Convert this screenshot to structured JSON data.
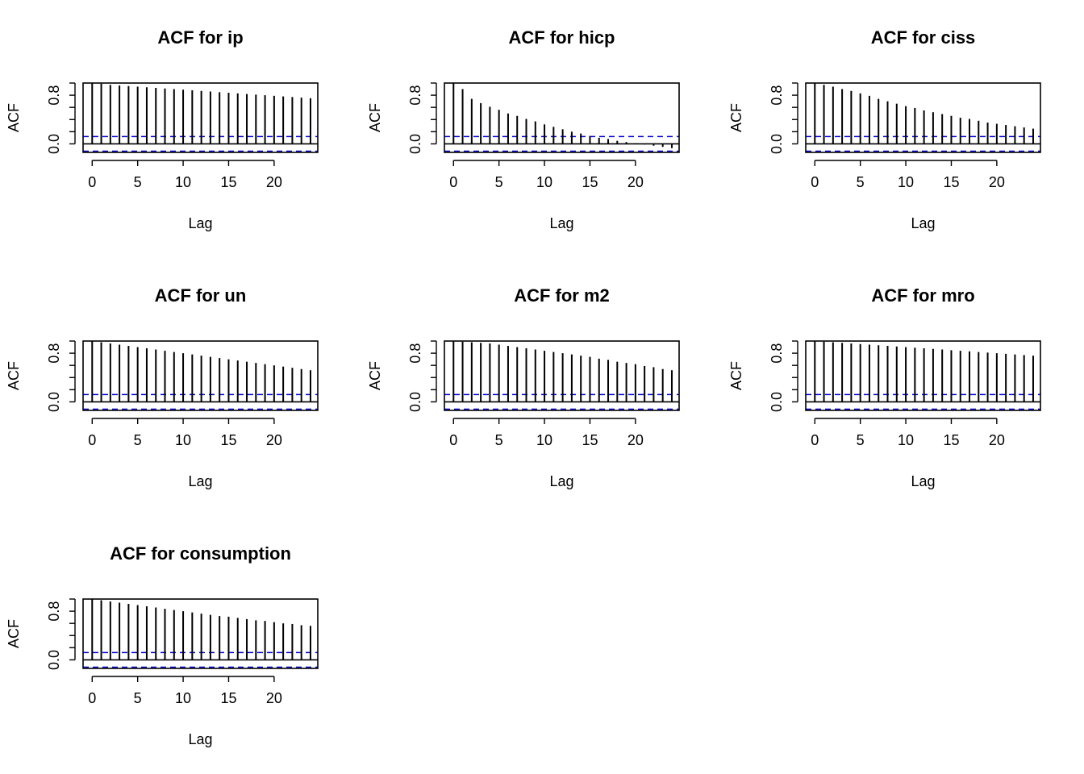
{
  "chart_data": [
    {
      "type": "bar",
      "title": "ACF for ip",
      "xlabel": "Lag",
      "ylabel": "ACF",
      "xlim": [
        -1,
        24.8
      ],
      "ylim": [
        -0.14,
        1.0
      ],
      "xticks": [
        "0",
        "5",
        "10",
        "15",
        "20"
      ],
      "yticks": [
        "0.0",
        "0.8"
      ],
      "x": [
        0,
        1,
        2,
        3,
        4,
        5,
        6,
        7,
        8,
        9,
        10,
        11,
        12,
        13,
        14,
        15,
        16,
        17,
        18,
        19,
        20,
        21,
        22,
        23,
        24
      ],
      "values": [
        1.0,
        0.99,
        0.97,
        0.96,
        0.95,
        0.94,
        0.93,
        0.92,
        0.91,
        0.9,
        0.89,
        0.88,
        0.87,
        0.86,
        0.85,
        0.84,
        0.83,
        0.82,
        0.81,
        0.8,
        0.79,
        0.78,
        0.77,
        0.76,
        0.75
      ],
      "conf_limits": [
        0.12,
        -0.12
      ]
    },
    {
      "type": "bar",
      "title": "ACF for hicp",
      "xlabel": "Lag",
      "ylabel": "ACF",
      "xlim": [
        -1,
        24.8
      ],
      "ylim": [
        -0.14,
        1.0
      ],
      "xticks": [
        "0",
        "5",
        "10",
        "15",
        "20"
      ],
      "yticks": [
        "0.0",
        "0.8"
      ],
      "x": [
        0,
        1,
        2,
        3,
        4,
        5,
        6,
        7,
        8,
        9,
        10,
        11,
        12,
        13,
        14,
        15,
        16,
        17,
        18,
        19,
        20,
        21,
        22,
        23,
        24
      ],
      "values": [
        1.0,
        0.9,
        0.74,
        0.67,
        0.61,
        0.56,
        0.5,
        0.46,
        0.41,
        0.37,
        0.32,
        0.28,
        0.24,
        0.2,
        0.17,
        0.13,
        0.1,
        0.08,
        0.05,
        0.03,
        0.01,
        -0.01,
        -0.03,
        -0.05,
        -0.07
      ],
      "conf_limits": [
        0.12,
        -0.12
      ]
    },
    {
      "type": "bar",
      "title": "ACF for ciss",
      "xlabel": "Lag",
      "ylabel": "ACF",
      "xlim": [
        -1,
        24.8
      ],
      "ylim": [
        -0.14,
        1.0
      ],
      "xticks": [
        "0",
        "5",
        "10",
        "15",
        "20"
      ],
      "yticks": [
        "0.0",
        "0.8"
      ],
      "x": [
        0,
        1,
        2,
        3,
        4,
        5,
        6,
        7,
        8,
        9,
        10,
        11,
        12,
        13,
        14,
        15,
        16,
        17,
        18,
        19,
        20,
        21,
        22,
        23,
        24
      ],
      "values": [
        1.0,
        0.97,
        0.94,
        0.9,
        0.87,
        0.83,
        0.79,
        0.74,
        0.7,
        0.66,
        0.62,
        0.59,
        0.55,
        0.52,
        0.49,
        0.46,
        0.43,
        0.41,
        0.38,
        0.35,
        0.33,
        0.31,
        0.29,
        0.27,
        0.25
      ],
      "conf_limits": [
        0.12,
        -0.12
      ]
    },
    {
      "type": "bar",
      "title": "ACF for un",
      "xlabel": "Lag",
      "ylabel": "ACF",
      "xlim": [
        -1,
        24.8
      ],
      "ylim": [
        -0.14,
        1.0
      ],
      "xticks": [
        "0",
        "5",
        "10",
        "15",
        "20"
      ],
      "yticks": [
        "0.0",
        "0.8"
      ],
      "x": [
        0,
        1,
        2,
        3,
        4,
        5,
        6,
        7,
        8,
        9,
        10,
        11,
        12,
        13,
        14,
        15,
        16,
        17,
        18,
        19,
        20,
        21,
        22,
        23,
        24
      ],
      "values": [
        1.0,
        0.98,
        0.96,
        0.94,
        0.92,
        0.9,
        0.88,
        0.86,
        0.84,
        0.82,
        0.8,
        0.78,
        0.76,
        0.74,
        0.72,
        0.7,
        0.68,
        0.66,
        0.64,
        0.62,
        0.6,
        0.58,
        0.56,
        0.54,
        0.52
      ],
      "conf_limits": [
        0.12,
        -0.12
      ]
    },
    {
      "type": "bar",
      "title": "ACF for m2",
      "xlabel": "Lag",
      "ylabel": "ACF",
      "xlim": [
        -1,
        24.8
      ],
      "ylim": [
        -0.14,
        1.0
      ],
      "xticks": [
        "0",
        "5",
        "10",
        "15",
        "20"
      ],
      "yticks": [
        "0.0",
        "0.8"
      ],
      "x": [
        0,
        1,
        2,
        3,
        4,
        5,
        6,
        7,
        8,
        9,
        10,
        11,
        12,
        13,
        14,
        15,
        16,
        17,
        18,
        19,
        20,
        21,
        22,
        23,
        24
      ],
      "values": [
        1.0,
        0.99,
        0.98,
        0.97,
        0.96,
        0.94,
        0.92,
        0.9,
        0.88,
        0.86,
        0.84,
        0.82,
        0.8,
        0.78,
        0.76,
        0.74,
        0.71,
        0.69,
        0.66,
        0.64,
        0.62,
        0.59,
        0.57,
        0.54,
        0.52
      ],
      "conf_limits": [
        0.12,
        -0.12
      ]
    },
    {
      "type": "bar",
      "title": "ACF for mro",
      "xlabel": "Lag",
      "ylabel": "ACF",
      "xlim": [
        -1,
        24.8
      ],
      "ylim": [
        -0.14,
        1.0
      ],
      "xticks": [
        "0",
        "5",
        "10",
        "15",
        "20"
      ],
      "yticks": [
        "0.0",
        "0.8"
      ],
      "x": [
        0,
        1,
        2,
        3,
        4,
        5,
        6,
        7,
        8,
        9,
        10,
        11,
        12,
        13,
        14,
        15,
        16,
        17,
        18,
        19,
        20,
        21,
        22,
        23,
        24
      ],
      "values": [
        1.0,
        0.99,
        0.98,
        0.97,
        0.96,
        0.95,
        0.94,
        0.93,
        0.92,
        0.91,
        0.9,
        0.89,
        0.88,
        0.87,
        0.86,
        0.85,
        0.84,
        0.83,
        0.82,
        0.81,
        0.8,
        0.79,
        0.78,
        0.77,
        0.76
      ],
      "conf_limits": [
        0.12,
        -0.12
      ]
    },
    {
      "type": "bar",
      "title": "ACF for consumption",
      "xlabel": "Lag",
      "ylabel": "ACF",
      "xlim": [
        -1,
        24.8
      ],
      "ylim": [
        -0.14,
        1.0
      ],
      "xticks": [
        "0",
        "5",
        "10",
        "15",
        "20"
      ],
      "yticks": [
        "0.0",
        "0.8"
      ],
      "x": [
        0,
        1,
        2,
        3,
        4,
        5,
        6,
        7,
        8,
        9,
        10,
        11,
        12,
        13,
        14,
        15,
        16,
        17,
        18,
        19,
        20,
        21,
        22,
        23,
        24
      ],
      "values": [
        1.0,
        0.98,
        0.96,
        0.94,
        0.92,
        0.9,
        0.88,
        0.86,
        0.84,
        0.82,
        0.8,
        0.78,
        0.76,
        0.74,
        0.72,
        0.71,
        0.69,
        0.67,
        0.65,
        0.64,
        0.62,
        0.6,
        0.59,
        0.57,
        0.56
      ],
      "conf_limits": [
        0.12,
        -0.12
      ]
    }
  ],
  "colors": {
    "bars": "#000000",
    "conf_line": "#0000cc",
    "frame": "#000000",
    "background": "#ffffff"
  }
}
